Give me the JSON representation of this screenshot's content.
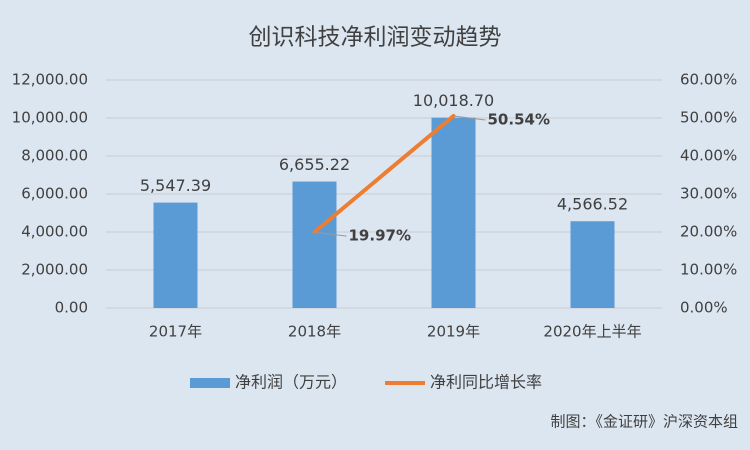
{
  "chart_data": {
    "type": "bar",
    "title": "创识科技净利润变动趋势",
    "categories": [
      "2017年",
      "2018年",
      "2019年",
      "2020年上半年"
    ],
    "series": [
      {
        "name": "净利润（万元）",
        "type": "bar",
        "color": "#5b9bd5",
        "values": [
          5547.39,
          6655.22,
          10018.7,
          4566.52
        ],
        "value_labels": [
          "5,547.39",
          "6,655.22",
          "10,018.70",
          "4,566.52"
        ]
      },
      {
        "name": "净利同比增长率",
        "type": "line",
        "axis": "y2",
        "color": "#ed7d31",
        "values": [
          null,
          19.97,
          50.54,
          null
        ],
        "value_labels": [
          null,
          "19.97%",
          "50.54%",
          null
        ]
      }
    ],
    "ylim": [
      0,
      12000
    ],
    "yticks": [
      {
        "value": 0,
        "label": "0.00"
      },
      {
        "value": 2000,
        "label": "2,000.00"
      },
      {
        "value": 4000,
        "label": "4,000.00"
      },
      {
        "value": 6000,
        "label": "6,000.00"
      },
      {
        "value": 8000,
        "label": "8,000.00"
      },
      {
        "value": 10000,
        "label": "10,000.00"
      },
      {
        "value": 12000,
        "label": "12,000.00"
      }
    ],
    "y2lim": [
      0,
      60
    ],
    "y2ticks": [
      {
        "value": 0,
        "label": "0.00%"
      },
      {
        "value": 10,
        "label": "10.00%"
      },
      {
        "value": 20,
        "label": "20.00%"
      },
      {
        "value": 30,
        "label": "30.00%"
      },
      {
        "value": 40,
        "label": "40.00%"
      },
      {
        "value": 50,
        "label": "50.00%"
      },
      {
        "value": 60,
        "label": "60.00%"
      }
    ],
    "grid": true,
    "legend": "bottom",
    "source": "制图：《金证研》沪深资本组"
  }
}
